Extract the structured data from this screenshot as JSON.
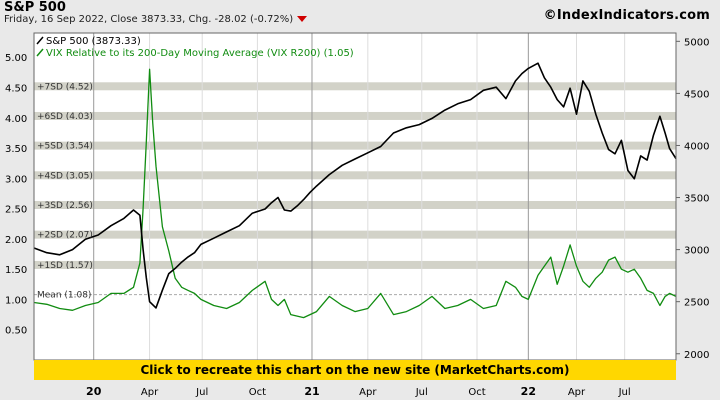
{
  "header": {
    "title": "S&P 500",
    "subtitle": "Friday, 16 Sep 2022, Close 3873.33, Chg. -28.02 (-0.72%)",
    "brand": "©IndexIndicators.com"
  },
  "banner": {
    "text": "Click to recreate this chart on the new site (MarketCharts.com)"
  },
  "colors": {
    "spx": "#000000",
    "vix": "#118c11",
    "band": "#d2d2c8",
    "banner": "#ffd700",
    "down": "#d00000"
  },
  "chart_data": {
    "type": "line",
    "legend": {
      "placement": "top-left",
      "entries": [
        "S&P 500 (3873.33)",
        "VIX Relative to its 200-Day Moving Average (VIX R200) (1.05)"
      ]
    },
    "x_ticks": [
      "20",
      "Apr",
      "Jul",
      "Oct",
      "21",
      "Apr",
      "Jul",
      "Oct",
      "22",
      "Apr",
      "Jul"
    ],
    "x_tick_fracs": [
      0.093,
      0.18,
      0.262,
      0.348,
      0.433,
      0.52,
      0.604,
      0.69,
      0.77,
      0.845,
      0.92
    ],
    "x_tick_bold": [
      true,
      false,
      false,
      false,
      true,
      false,
      false,
      false,
      true,
      false,
      false
    ],
    "left_axis": {
      "min": 0.0,
      "max": 5.4,
      "ticks": [
        "5.00",
        "4.50",
        "4.00",
        "3.50",
        "3.00",
        "2.50",
        "2.00",
        "1.50",
        "1.00",
        "0.50"
      ],
      "tick_values": [
        5.0,
        4.5,
        4.0,
        3.5,
        3.0,
        2.5,
        2.0,
        1.5,
        1.0,
        0.5
      ]
    },
    "right_axis": {
      "min": 1940,
      "max": 5080,
      "ticks": [
        "5000",
        "4500",
        "4000",
        "3500",
        "3000",
        "2500",
        "2000"
      ],
      "tick_values": [
        5000,
        4500,
        4000,
        3500,
        3000,
        2500,
        2000
      ]
    },
    "sd_bands": [
      {
        "label": "+7SD (4.52)",
        "value": 4.52
      },
      {
        "label": "+6SD (4.03)",
        "value": 4.03
      },
      {
        "label": "+5SD (3.54)",
        "value": 3.54
      },
      {
        "label": "+4SD (3.05)",
        "value": 3.05
      },
      {
        "label": "+3SD (2.56)",
        "value": 2.56
      },
      {
        "label": "+2SD (2.07)",
        "value": 2.07
      },
      {
        "label": "+1SD (1.57)",
        "value": 1.57
      }
    ],
    "mean": {
      "label": "Mean (1.08)",
      "value": 1.08
    },
    "series": [
      {
        "name": "S&P 500 (3873.33)",
        "axis": "right",
        "points": [
          [
            0.0,
            3015
          ],
          [
            0.02,
            2970
          ],
          [
            0.04,
            2950
          ],
          [
            0.06,
            3000
          ],
          [
            0.08,
            3100
          ],
          [
            0.1,
            3140
          ],
          [
            0.12,
            3230
          ],
          [
            0.14,
            3300
          ],
          [
            0.155,
            3380
          ],
          [
            0.165,
            3330
          ],
          [
            0.17,
            3000
          ],
          [
            0.175,
            2730
          ],
          [
            0.18,
            2500
          ],
          [
            0.19,
            2440
          ],
          [
            0.2,
            2610
          ],
          [
            0.21,
            2770
          ],
          [
            0.22,
            2820
          ],
          [
            0.23,
            2880
          ],
          [
            0.24,
            2930
          ],
          [
            0.25,
            2970
          ],
          [
            0.26,
            3050
          ],
          [
            0.28,
            3110
          ],
          [
            0.3,
            3170
          ],
          [
            0.32,
            3230
          ],
          [
            0.34,
            3350
          ],
          [
            0.36,
            3390
          ],
          [
            0.37,
            3450
          ],
          [
            0.38,
            3500
          ],
          [
            0.39,
            3380
          ],
          [
            0.4,
            3370
          ],
          [
            0.41,
            3420
          ],
          [
            0.42,
            3480
          ],
          [
            0.43,
            3550
          ],
          [
            0.44,
            3610
          ],
          [
            0.46,
            3720
          ],
          [
            0.48,
            3810
          ],
          [
            0.5,
            3870
          ],
          [
            0.52,
            3930
          ],
          [
            0.54,
            3990
          ],
          [
            0.56,
            4120
          ],
          [
            0.58,
            4170
          ],
          [
            0.6,
            4200
          ],
          [
            0.62,
            4260
          ],
          [
            0.64,
            4340
          ],
          [
            0.66,
            4400
          ],
          [
            0.68,
            4440
          ],
          [
            0.7,
            4530
          ],
          [
            0.72,
            4560
          ],
          [
            0.735,
            4450
          ],
          [
            0.75,
            4620
          ],
          [
            0.76,
            4690
          ],
          [
            0.77,
            4740
          ],
          [
            0.785,
            4790
          ],
          [
            0.795,
            4650
          ],
          [
            0.805,
            4560
          ],
          [
            0.815,
            4440
          ],
          [
            0.825,
            4370
          ],
          [
            0.835,
            4550
          ],
          [
            0.845,
            4300
          ],
          [
            0.855,
            4620
          ],
          [
            0.865,
            4520
          ],
          [
            0.875,
            4300
          ],
          [
            0.885,
            4120
          ],
          [
            0.895,
            3960
          ],
          [
            0.905,
            3920
          ],
          [
            0.915,
            4050
          ],
          [
            0.925,
            3760
          ],
          [
            0.935,
            3680
          ],
          [
            0.945,
            3900
          ],
          [
            0.955,
            3860
          ],
          [
            0.965,
            4100
          ],
          [
            0.975,
            4280
          ],
          [
            0.983,
            4120
          ],
          [
            0.99,
            3970
          ],
          [
            1.0,
            3873
          ]
        ]
      },
      {
        "name": "VIX Relative to its 200-Day Moving Average (VIX R200) (1.05)",
        "axis": "left",
        "points": [
          [
            0.0,
            0.95
          ],
          [
            0.02,
            0.92
          ],
          [
            0.04,
            0.85
          ],
          [
            0.06,
            0.82
          ],
          [
            0.08,
            0.9
          ],
          [
            0.1,
            0.95
          ],
          [
            0.12,
            1.1
          ],
          [
            0.14,
            1.1
          ],
          [
            0.155,
            1.2
          ],
          [
            0.165,
            1.6
          ],
          [
            0.17,
            2.5
          ],
          [
            0.175,
            3.6
          ],
          [
            0.18,
            4.8
          ],
          [
            0.185,
            3.9
          ],
          [
            0.19,
            3.2
          ],
          [
            0.2,
            2.2
          ],
          [
            0.21,
            1.8
          ],
          [
            0.22,
            1.35
          ],
          [
            0.23,
            1.2
          ],
          [
            0.24,
            1.15
          ],
          [
            0.25,
            1.1
          ],
          [
            0.26,
            1.0
          ],
          [
            0.28,
            0.9
          ],
          [
            0.3,
            0.85
          ],
          [
            0.32,
            0.95
          ],
          [
            0.34,
            1.15
          ],
          [
            0.36,
            1.3
          ],
          [
            0.37,
            1.0
          ],
          [
            0.38,
            0.9
          ],
          [
            0.39,
            1.0
          ],
          [
            0.4,
            0.75
          ],
          [
            0.42,
            0.7
          ],
          [
            0.44,
            0.8
          ],
          [
            0.46,
            1.05
          ],
          [
            0.48,
            0.9
          ],
          [
            0.5,
            0.8
          ],
          [
            0.52,
            0.85
          ],
          [
            0.54,
            1.1
          ],
          [
            0.56,
            0.75
          ],
          [
            0.58,
            0.8
          ],
          [
            0.6,
            0.9
          ],
          [
            0.62,
            1.05
          ],
          [
            0.64,
            0.85
          ],
          [
            0.66,
            0.9
          ],
          [
            0.68,
            1.0
          ],
          [
            0.7,
            0.85
          ],
          [
            0.72,
            0.9
          ],
          [
            0.735,
            1.3
          ],
          [
            0.75,
            1.2
          ],
          [
            0.76,
            1.05
          ],
          [
            0.77,
            1.0
          ],
          [
            0.785,
            1.4
          ],
          [
            0.795,
            1.55
          ],
          [
            0.805,
            1.7
          ],
          [
            0.815,
            1.25
          ],
          [
            0.825,
            1.55
          ],
          [
            0.835,
            1.9
          ],
          [
            0.845,
            1.55
          ],
          [
            0.855,
            1.3
          ],
          [
            0.865,
            1.2
          ],
          [
            0.875,
            1.35
          ],
          [
            0.885,
            1.45
          ],
          [
            0.895,
            1.65
          ],
          [
            0.905,
            1.7
          ],
          [
            0.915,
            1.5
          ],
          [
            0.925,
            1.45
          ],
          [
            0.935,
            1.5
          ],
          [
            0.945,
            1.35
          ],
          [
            0.955,
            1.15
          ],
          [
            0.965,
            1.1
          ],
          [
            0.975,
            0.9
          ],
          [
            0.983,
            1.05
          ],
          [
            0.99,
            1.1
          ],
          [
            1.0,
            1.05
          ]
        ]
      }
    ]
  }
}
